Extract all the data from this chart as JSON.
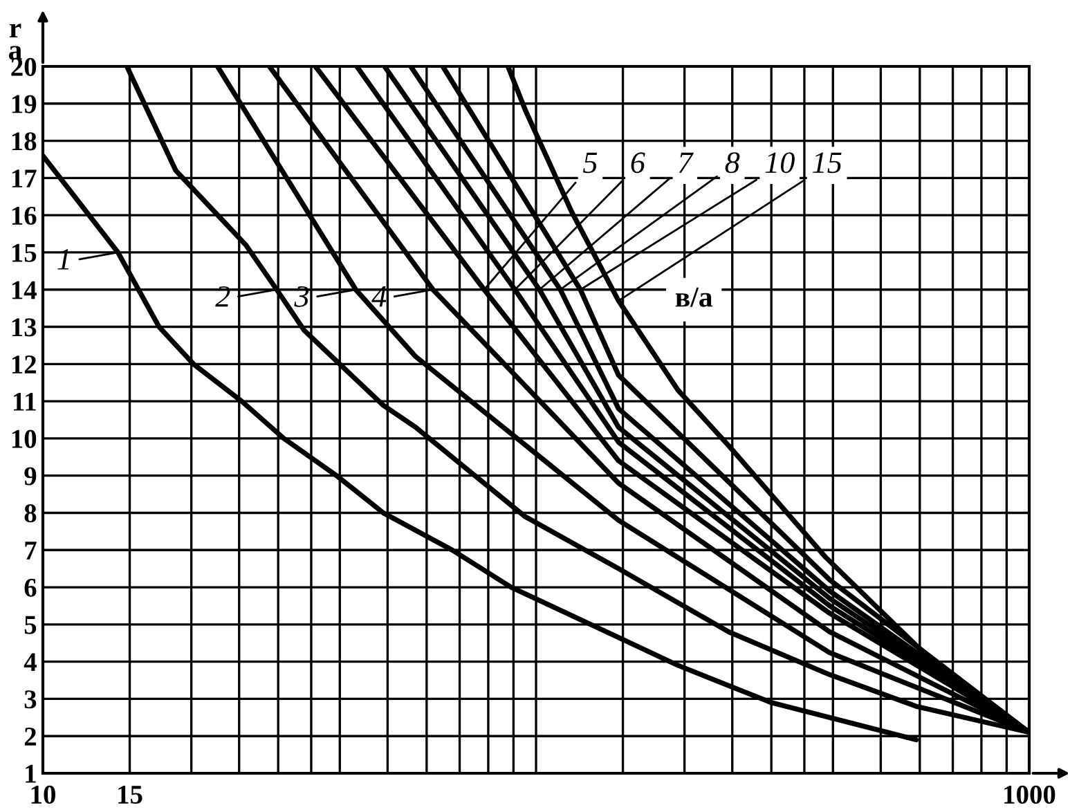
{
  "chart_data": {
    "type": "line",
    "xlabel": "в/а",
    "ylabel": "r\na",
    "log": "x",
    "grid": true,
    "marker": "none",
    "line_style": "solid",
    "xlim": [
      10,
      1000
    ],
    "ylim": [
      1,
      20
    ],
    "xticks": [
      10,
      15,
      {
        "value": 20,
        "label": null
      },
      {
        "value": 25,
        "label": null
      },
      {
        "value": 30,
        "label": null
      },
      {
        "value": 35,
        "label": null
      },
      {
        "value": 40,
        "label": null
      },
      {
        "value": 50,
        "label": null
      },
      {
        "value": 60,
        "label": null
      },
      {
        "value": 70,
        "label": null
      },
      {
        "value": 80,
        "label": null
      },
      {
        "value": 90,
        "label": null
      },
      {
        "value": 100,
        "label": null
      },
      {
        "value": 150,
        "label": null
      },
      {
        "value": 200,
        "label": null
      },
      {
        "value": 250,
        "label": null
      },
      {
        "value": 300,
        "label": null
      },
      {
        "value": 350,
        "label": null
      },
      {
        "value": 400,
        "label": null
      },
      {
        "value": 500,
        "label": null
      },
      {
        "value": 600,
        "label": null
      },
      {
        "value": 700,
        "label": null
      },
      {
        "value": 800,
        "label": null
      },
      {
        "value": 900,
        "label": null
      },
      1000
    ],
    "yticks": [
      1,
      2,
      3,
      4,
      5,
      6,
      7,
      8,
      9,
      10,
      11,
      12,
      13,
      14,
      15,
      16,
      17,
      18,
      19,
      20
    ],
    "series": [
      {
        "color": "#000000",
        "x": [
          10,
          14.2,
          17.2,
          20.2,
          25.3,
          30.8,
          39.4,
          49,
          67.6,
          89,
          134,
          194,
          300,
          590
        ],
        "values": [
          17.6,
          15,
          13,
          12,
          11,
          10,
          9,
          8,
          7,
          6,
          4.9,
          3.9,
          2.9,
          1.9
        ]
      },
      {
        "color": "#000000",
        "x": [
          14.8,
          18.6,
          25.8,
          29.8,
          33.9,
          48.9,
          57,
          95,
          147,
          246,
          394,
          590,
          1000
        ],
        "values": [
          20,
          17.2,
          15.2,
          14,
          12.9,
          10.9,
          10.3,
          7.9,
          6.5,
          4.8,
          3.65,
          2.8,
          2.1
        ]
      },
      {
        "color": "#000000",
        "x": [
          22.6,
          43.1,
          57,
          147,
          394,
          1000
        ],
        "values": [
          20,
          14,
          12.2,
          7.8,
          4.24,
          2.1
        ]
      },
      {
        "color": "#000000",
        "x": [
          28.8,
          61.8,
          147,
          394,
          1000
        ],
        "values": [
          20,
          14,
          8.8,
          4.8,
          2.1
        ]
      },
      {
        "color": "#000000",
        "x": [
          35.7,
          78.5,
          147,
          394,
          1000
        ],
        "values": [
          20,
          14,
          9.4,
          5.3,
          2.1
        ]
      },
      {
        "color": "#000000",
        "x": [
          43.3,
          90.6,
          147,
          394,
          1000
        ],
        "values": [
          20,
          14,
          9.9,
          5.5,
          2.1
        ]
      },
      {
        "color": "#000000",
        "x": [
          49.3,
          101.6,
          147,
          394,
          1000
        ],
        "values": [
          20,
          14,
          10.3,
          5.7,
          2.1
        ]
      },
      {
        "color": "#000000",
        "x": [
          55.7,
          112,
          147,
          394,
          1000
        ],
        "values": [
          20,
          14,
          10.8,
          5.9,
          2.1
        ]
      },
      {
        "color": "#000000",
        "x": [
          64.7,
          123,
          147,
          394,
          1000
        ],
        "values": [
          20,
          14,
          11.7,
          6.2,
          2.1
        ]
      },
      {
        "color": "#000000",
        "x": [
          87.7,
          95.3,
          118,
          147,
          194,
          246,
          387,
          661,
          1000
        ],
        "values": [
          20,
          18.8,
          16.1,
          13.7,
          11.3,
          9.8,
          6.8,
          3.8,
          2.1
        ]
      }
    ],
    "annotations": [
      {
        "text": "1",
        "x": 14.2,
        "y": 15
      },
      {
        "text": "2",
        "x": 29.8,
        "y": 14
      },
      {
        "text": "3",
        "x": 43.1,
        "y": 14
      },
      {
        "text": "4",
        "x": 61.8,
        "y": 14
      },
      {
        "text": "5",
        "x": 78.5,
        "y": 14
      },
      {
        "text": "6",
        "x": 90.6,
        "y": 14
      },
      {
        "text": "7",
        "x": 101.6,
        "y": 14
      },
      {
        "text": "8",
        "x": 112,
        "y": 14
      },
      {
        "text": "10",
        "x": 123,
        "y": 14
      },
      {
        "text": "15",
        "x": 147,
        "y": 13.7
      }
    ]
  }
}
